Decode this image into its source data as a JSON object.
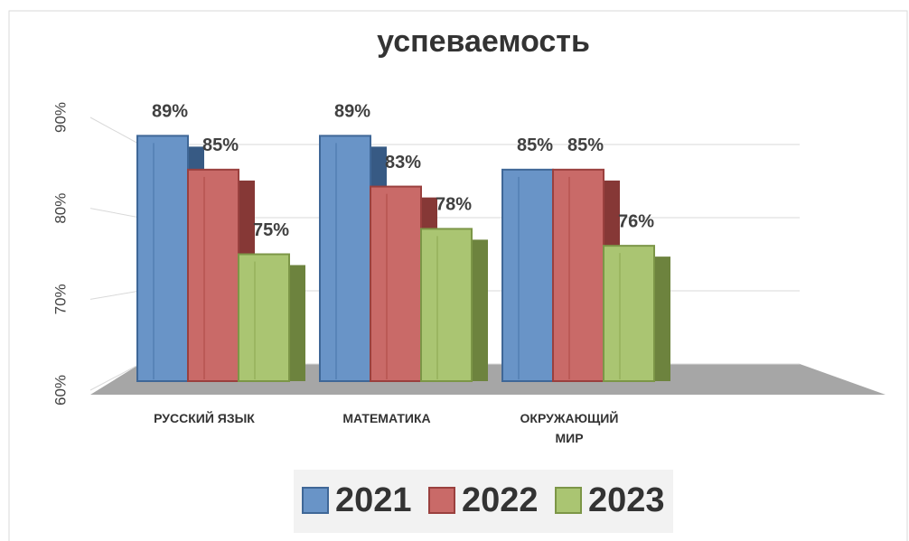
{
  "chart_data": {
    "type": "bar",
    "title": "успеваемость",
    "categories": [
      "РУССКИЙ ЯЗЫК",
      "МАТЕМАТИКА",
      "ОКРУЖАЮЩИЙ\nМИР"
    ],
    "series": [
      {
        "name": "2021",
        "color": "#4f81bd",
        "values": [
          89,
          89,
          85
        ],
        "value_labels": [
          "89%",
          "89%",
          "85%"
        ]
      },
      {
        "name": "2022",
        "color": "#c0504d",
        "values": [
          85,
          83,
          85
        ],
        "value_labels": [
          "85%",
          "83%",
          "85%"
        ]
      },
      {
        "name": "2023",
        "color": "#9bbb59",
        "values": [
          75,
          78,
          76
        ],
        "value_labels": [
          "75%",
          "78%",
          "76%"
        ]
      }
    ],
    "ylim": [
      60,
      90
    ],
    "yticks": [
      {
        "value": 60,
        "label": "60%"
      },
      {
        "value": 70,
        "label": "70%"
      },
      {
        "value": 80,
        "label": "80%"
      },
      {
        "value": 90,
        "label": "90%"
      }
    ],
    "grid": true
  }
}
